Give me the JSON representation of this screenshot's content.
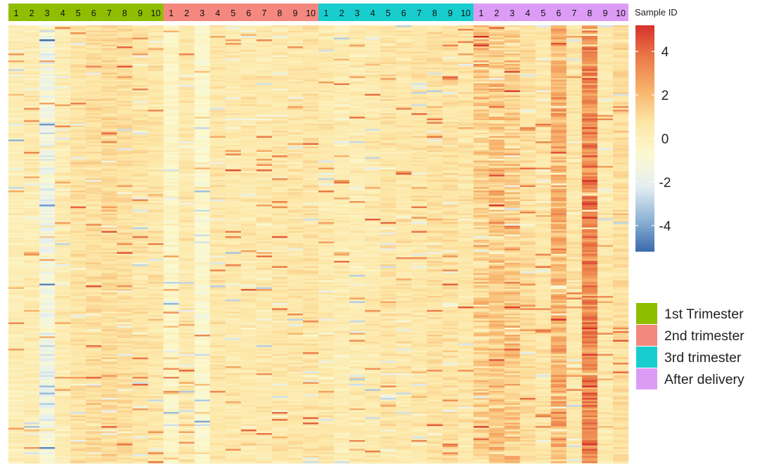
{
  "chart_data": {
    "type": "heatmap",
    "column_annotation_title": "Sample ID",
    "groups": [
      {
        "name": "1st Trimester",
        "color": "#8fbe00",
        "samples": [
          "1",
          "2",
          "3",
          "4",
          "5",
          "6",
          "7",
          "8",
          "9",
          "10"
        ]
      },
      {
        "name": "2nd trimester",
        "color": "#f5887e",
        "samples": [
          "1",
          "2",
          "3",
          "4",
          "5",
          "6",
          "7",
          "8",
          "9",
          "10"
        ]
      },
      {
        "name": "3rd trimester",
        "color": "#19cdcf",
        "samples": [
          "1",
          "2",
          "3",
          "4",
          "5",
          "6",
          "7",
          "8",
          "9",
          "10"
        ]
      },
      {
        "name": "After delivery",
        "color": "#dc9cf5",
        "samples": [
          "1",
          "2",
          "3",
          "4",
          "5",
          "6",
          "7",
          "8",
          "9",
          "10"
        ]
      }
    ],
    "column_bias": [
      [
        0.2,
        0.3,
        -1.3,
        0.3,
        0.8,
        0.9,
        1.0,
        0.9,
        0.7,
        0.6
      ],
      [
        -0.4,
        0.5,
        -0.6,
        0.6,
        0.5,
        0.5,
        0.5,
        0.6,
        0.6,
        0.7
      ],
      [
        0.5,
        0.3,
        0.3,
        0.4,
        0.7,
        0.6,
        0.6,
        0.8,
        0.8,
        0.6
      ],
      [
        1.3,
        1.5,
        1.4,
        0.9,
        0.6,
        2.2,
        0.6,
        3.4,
        0.5,
        0.9
      ]
    ],
    "colorscale": {
      "min": -5.2,
      "max": 5.2,
      "ticks": [
        4,
        2,
        0,
        -2,
        -4
      ],
      "colors": [
        "#3b6aac",
        "#8fb5d6",
        "#e4eef2",
        "#fbf9d0",
        "#fde6a6",
        "#f7b26b",
        "#ea7b48",
        "#d6322b"
      ]
    },
    "legend": {
      "position": "right",
      "entries": [
        "1st Trimester",
        "2nd trimester",
        "3rd trimester",
        "After delivery"
      ]
    }
  }
}
